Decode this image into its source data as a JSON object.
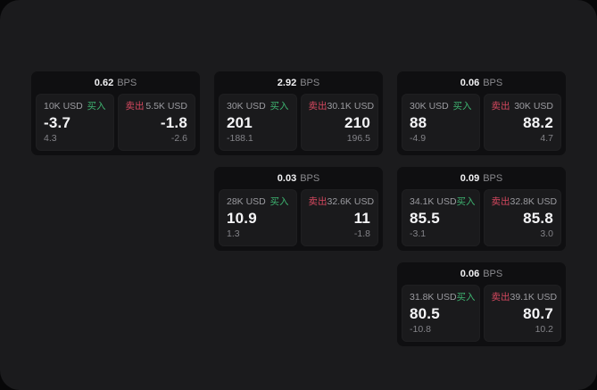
{
  "window": {
    "background": "#1b1b1d"
  },
  "colors": {
    "buy_green": "#3eb370",
    "sell_red": "#d5485f"
  },
  "cards": [
    {
      "row": 1,
      "col": 1,
      "bps_value": "0.62",
      "bps_unit": "BPS",
      "buy": {
        "amount": "10K USD",
        "side_label": "买入",
        "price": "-3.7",
        "change": "4.3"
      },
      "sell": {
        "side_label": "卖出",
        "amount": "5.5K USD",
        "price": "-1.8",
        "change": "-2.6"
      }
    },
    {
      "row": 1,
      "col": 2,
      "bps_value": "2.92",
      "bps_unit": "BPS",
      "buy": {
        "amount": "30K USD",
        "side_label": "买入",
        "price": "201",
        "change": "-188.1"
      },
      "sell": {
        "side_label": "卖出",
        "amount": "30.1K USD",
        "price": "210",
        "change": "196.5"
      }
    },
    {
      "row": 1,
      "col": 3,
      "bps_value": "0.06",
      "bps_unit": "BPS",
      "buy": {
        "amount": "30K USD",
        "side_label": "买入",
        "price": "88",
        "change": "-4.9"
      },
      "sell": {
        "side_label": "卖出",
        "amount": "30K USD",
        "price": "88.2",
        "change": "4.7"
      }
    },
    {
      "row": 2,
      "col": 2,
      "bps_value": "0.03",
      "bps_unit": "BPS",
      "buy": {
        "amount": "28K USD",
        "side_label": "买入",
        "price": "10.9",
        "change": "1.3"
      },
      "sell": {
        "side_label": "卖出",
        "amount": "32.6K USD",
        "price": "11",
        "change": "-1.8"
      }
    },
    {
      "row": 2,
      "col": 3,
      "bps_value": "0.09",
      "bps_unit": "BPS",
      "buy": {
        "amount": "34.1K USD",
        "side_label": "买入",
        "price": "85.5",
        "change": "-3.1"
      },
      "sell": {
        "side_label": "卖出",
        "amount": "32.8K USD",
        "price": "85.8",
        "change": "3.0"
      }
    },
    {
      "row": 3,
      "col": 3,
      "bps_value": "0.06",
      "bps_unit": "BPS",
      "buy": {
        "amount": "31.8K USD",
        "side_label": "买入",
        "price": "80.5",
        "change": "-10.8"
      },
      "sell": {
        "side_label": "卖出",
        "amount": "39.1K USD",
        "price": "80.7",
        "change": "10.2"
      }
    }
  ]
}
